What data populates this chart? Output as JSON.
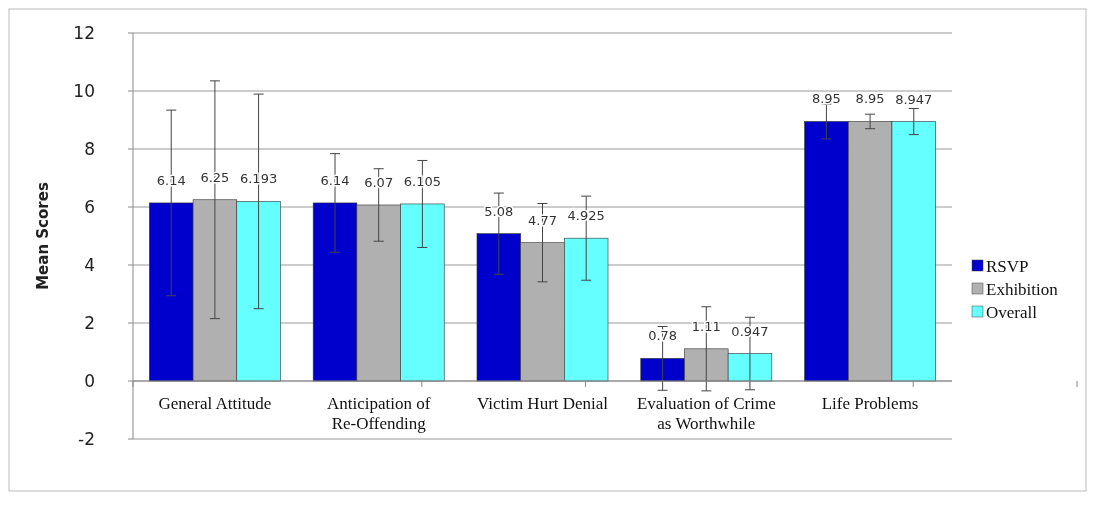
{
  "chart_data": {
    "type": "bar",
    "ylabel": "Mean Scores",
    "categories": [
      "General Attitude",
      "Anticipation of Re-Offending",
      "Victim Hurt Denial",
      "Evaluation of Crime as Worthwhile",
      "Life Problems"
    ],
    "series": [
      {
        "name": "RSVP",
        "color": "#0000cc",
        "values": [
          6.14,
          6.14,
          5.08,
          0.78,
          8.95
        ],
        "errors": [
          3.2,
          1.7,
          1.4,
          1.1,
          0.6
        ]
      },
      {
        "name": "Exhibition",
        "color": "#b0b0b0",
        "values": [
          6.25,
          6.07,
          4.77,
          1.11,
          8.95
        ],
        "errors": [
          4.1,
          1.25,
          1.35,
          1.45,
          0.25
        ]
      },
      {
        "name": "Overall",
        "color": "#66ffff",
        "values": [
          6.193,
          6.105,
          4.925,
          0.947,
          8.947
        ],
        "errors": [
          3.7,
          1.5,
          1.45,
          1.25,
          0.45
        ]
      }
    ],
    "ylim": [
      -2,
      12
    ],
    "yticks": [
      -2,
      0,
      2,
      4,
      6,
      8,
      10,
      12
    ],
    "grid": "y",
    "legend": "right",
    "data_labels": true
  }
}
